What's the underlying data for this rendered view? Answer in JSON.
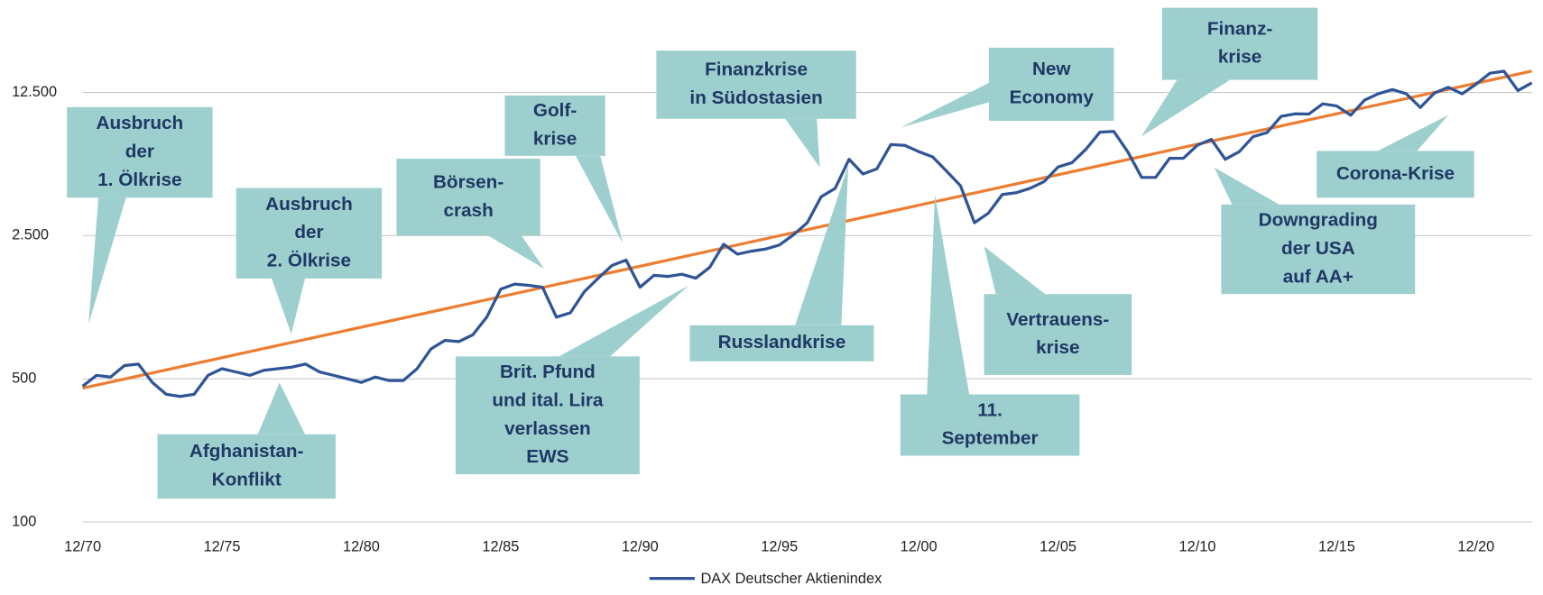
{
  "chart_data": {
    "type": "line",
    "yscale": "log",
    "grid": true,
    "legend": "bottom",
    "x": [
      "12/70",
      "06/71",
      "12/71",
      "06/72",
      "12/72",
      "06/73",
      "12/73",
      "06/74",
      "12/74",
      "06/75",
      "12/75",
      "06/76",
      "12/76",
      "06/77",
      "12/77",
      "06/78",
      "12/78",
      "06/79",
      "12/79",
      "06/80",
      "12/80",
      "06/81",
      "12/81",
      "06/82",
      "12/82",
      "06/83",
      "12/83",
      "06/84",
      "12/84",
      "06/85",
      "12/85",
      "06/86",
      "12/86",
      "06/87",
      "12/87",
      "06/88",
      "12/88",
      "06/89",
      "12/89",
      "06/90",
      "12/90",
      "06/91",
      "12/91",
      "06/92",
      "12/92",
      "06/93",
      "12/93",
      "06/94",
      "12/94",
      "06/95",
      "12/95",
      "06/96",
      "12/96",
      "06/97",
      "12/97",
      "06/98",
      "12/98",
      "06/99",
      "12/99",
      "06/00",
      "12/00",
      "06/01",
      "12/01",
      "06/02",
      "12/02",
      "06/03",
      "12/03",
      "06/04",
      "12/04",
      "06/05",
      "12/05",
      "06/06",
      "12/06",
      "06/07",
      "12/07",
      "06/08",
      "12/08",
      "06/09",
      "12/09",
      "06/10",
      "12/10",
      "06/11",
      "12/11",
      "06/12",
      "12/12",
      "06/13",
      "12/13",
      "06/14",
      "12/14",
      "06/15",
      "12/15",
      "06/16",
      "12/16",
      "06/17",
      "12/17",
      "06/18",
      "12/18",
      "06/19",
      "12/19",
      "06/20",
      "12/20",
      "06/21",
      "12/21",
      "06/22",
      "12/22"
    ],
    "series": [
      {
        "name": "DAX Deutscher Aktienindex",
        "color": "#2f5597",
        "values": [
          460,
          520,
          510,
          580,
          590,
          480,
          420,
          410,
          420,
          520,
          560,
          540,
          520,
          550,
          560,
          570,
          590,
          540,
          520,
          500,
          480,
          510,
          490,
          490,
          560,
          700,
          770,
          760,
          820,
          1000,
          1370,
          1450,
          1430,
          1400,
          1000,
          1050,
          1330,
          1550,
          1790,
          1900,
          1400,
          1600,
          1580,
          1620,
          1550,
          1750,
          2270,
          2030,
          2100,
          2150,
          2250,
          2520,
          2890,
          3870,
          4250,
          5900,
          5000,
          5300,
          6960,
          6900,
          6430,
          6060,
          5160,
          4380,
          2890,
          3220,
          3970,
          4050,
          4260,
          4590,
          5410,
          5680,
          6600,
          8000,
          8070,
          6420,
          4810,
          4810,
          5960,
          5970,
          6910,
          7380,
          5900,
          6420,
          7610,
          7960,
          9550,
          9830,
          9810,
          11000,
          10740,
          9680,
          11480,
          12330,
          12920,
          12310,
          10560,
          12400,
          13250,
          12310,
          13720,
          15530,
          15880,
          12780,
          13920
        ]
      }
    ],
    "trendline": {
      "color": "#ed7d31",
      "x": [
        "12/70",
        "12/22"
      ],
      "values": [
        450,
        15900
      ]
    },
    "ylim": [
      100,
      30000
    ],
    "yticks": [
      100,
      500,
      {
        "value": 2500,
        "label": "2.500"
      },
      {
        "value": 12500,
        "label": "12.500"
      }
    ],
    "xticks": [
      "12/70",
      "12/75",
      "12/80",
      "12/85",
      "12/90",
      "12/95",
      "12/00",
      "12/05",
      "12/10",
      "12/15",
      "12/20"
    ],
    "annotations": [
      {
        "lines": [
          "Ausbruch",
          "der",
          "1. Ölkrise"
        ]
      },
      {
        "lines": [
          "Ausbruch",
          "der",
          "2. Ölkrise"
        ]
      },
      {
        "lines": [
          "Afghanistan-",
          "Konflikt"
        ]
      },
      {
        "lines": [
          "Börsen-",
          "crash"
        ]
      },
      {
        "lines": [
          "Golf-",
          "krise"
        ]
      },
      {
        "lines": [
          "Brit. Pfund",
          "und ital. Lira",
          "verlassen",
          "EWS"
        ]
      },
      {
        "lines": [
          "Finanzkrise",
          "in Südostasien"
        ]
      },
      {
        "lines": [
          "Russlandkrise"
        ]
      },
      {
        "lines": [
          "New",
          "Economy"
        ]
      },
      {
        "lines": [
          "11.",
          "September"
        ]
      },
      {
        "lines": [
          "Vertrauens-",
          "krise"
        ]
      },
      {
        "lines": [
          "Finanz-",
          "krise"
        ]
      },
      {
        "lines": [
          "Downgrading",
          "der USA",
          "auf AA+"
        ]
      },
      {
        "lines": [
          "Corona-Krise"
        ]
      }
    ]
  }
}
